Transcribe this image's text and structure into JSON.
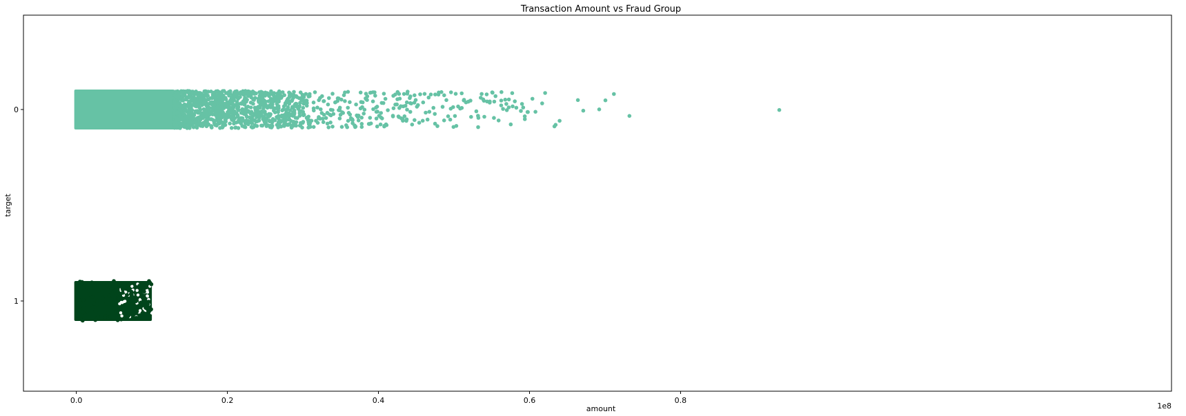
{
  "chart_data": {
    "type": "scatter",
    "subtype": "stripplot",
    "title": "Transaction Amount vs Fraud Group",
    "xlabel": "amount",
    "ylabel": "target",
    "x_scale_label": "1e8",
    "xlim": [
      -0.07,
      1.45
    ],
    "x_ticks": [
      0.0,
      0.2,
      0.4,
      0.6,
      0.8
    ],
    "x_tick_labels": [
      "0.0",
      "0.2",
      "0.4",
      "0.6",
      "0.8"
    ],
    "categories": [
      "0",
      "1"
    ],
    "grid": false,
    "series": [
      {
        "category": "0",
        "color": "#66c2a5",
        "dense_range": [
          0.0,
          0.13
        ],
        "sparse_points": [
          0.14,
          0.15,
          0.155,
          0.16,
          0.165,
          0.17,
          0.175,
          0.18,
          0.185,
          0.19,
          0.195,
          0.2,
          0.205,
          0.21,
          0.215,
          0.22,
          0.225,
          0.23,
          0.235,
          0.24,
          0.245,
          0.25,
          0.255,
          0.26,
          0.265,
          0.27,
          0.275,
          0.28,
          0.285,
          0.29,
          0.295,
          0.3,
          0.305,
          0.31,
          0.315,
          0.32,
          0.325,
          0.33,
          0.335,
          0.34,
          0.345,
          0.35,
          0.355,
          0.36,
          0.365,
          0.37,
          0.375,
          0.38,
          0.385,
          0.39,
          0.395,
          0.4,
          0.405,
          0.41,
          0.42,
          0.425,
          0.43,
          0.435,
          0.44,
          0.445,
          0.45,
          0.455,
          0.46,
          0.465,
          0.47,
          0.475,
          0.48,
          0.485,
          0.49,
          0.495,
          0.5,
          0.505,
          0.51,
          0.515,
          0.52,
          0.53,
          0.535,
          0.54,
          0.545,
          0.55,
          0.555,
          0.56,
          0.565,
          0.57,
          0.575,
          0.58,
          0.59,
          0.595,
          0.6,
          0.605,
          0.61,
          0.615,
          0.62,
          0.63,
          0.635,
          0.64,
          0.665,
          0.67,
          0.695,
          0.7,
          0.71,
          0.735,
          0.93
        ],
        "points_per_dense_unit": 22000,
        "points_per_sparse": 3
      },
      {
        "category": "1",
        "color": "#00441b",
        "dense_range": [
          0.0,
          0.1
        ],
        "points": 4500
      }
    ]
  }
}
